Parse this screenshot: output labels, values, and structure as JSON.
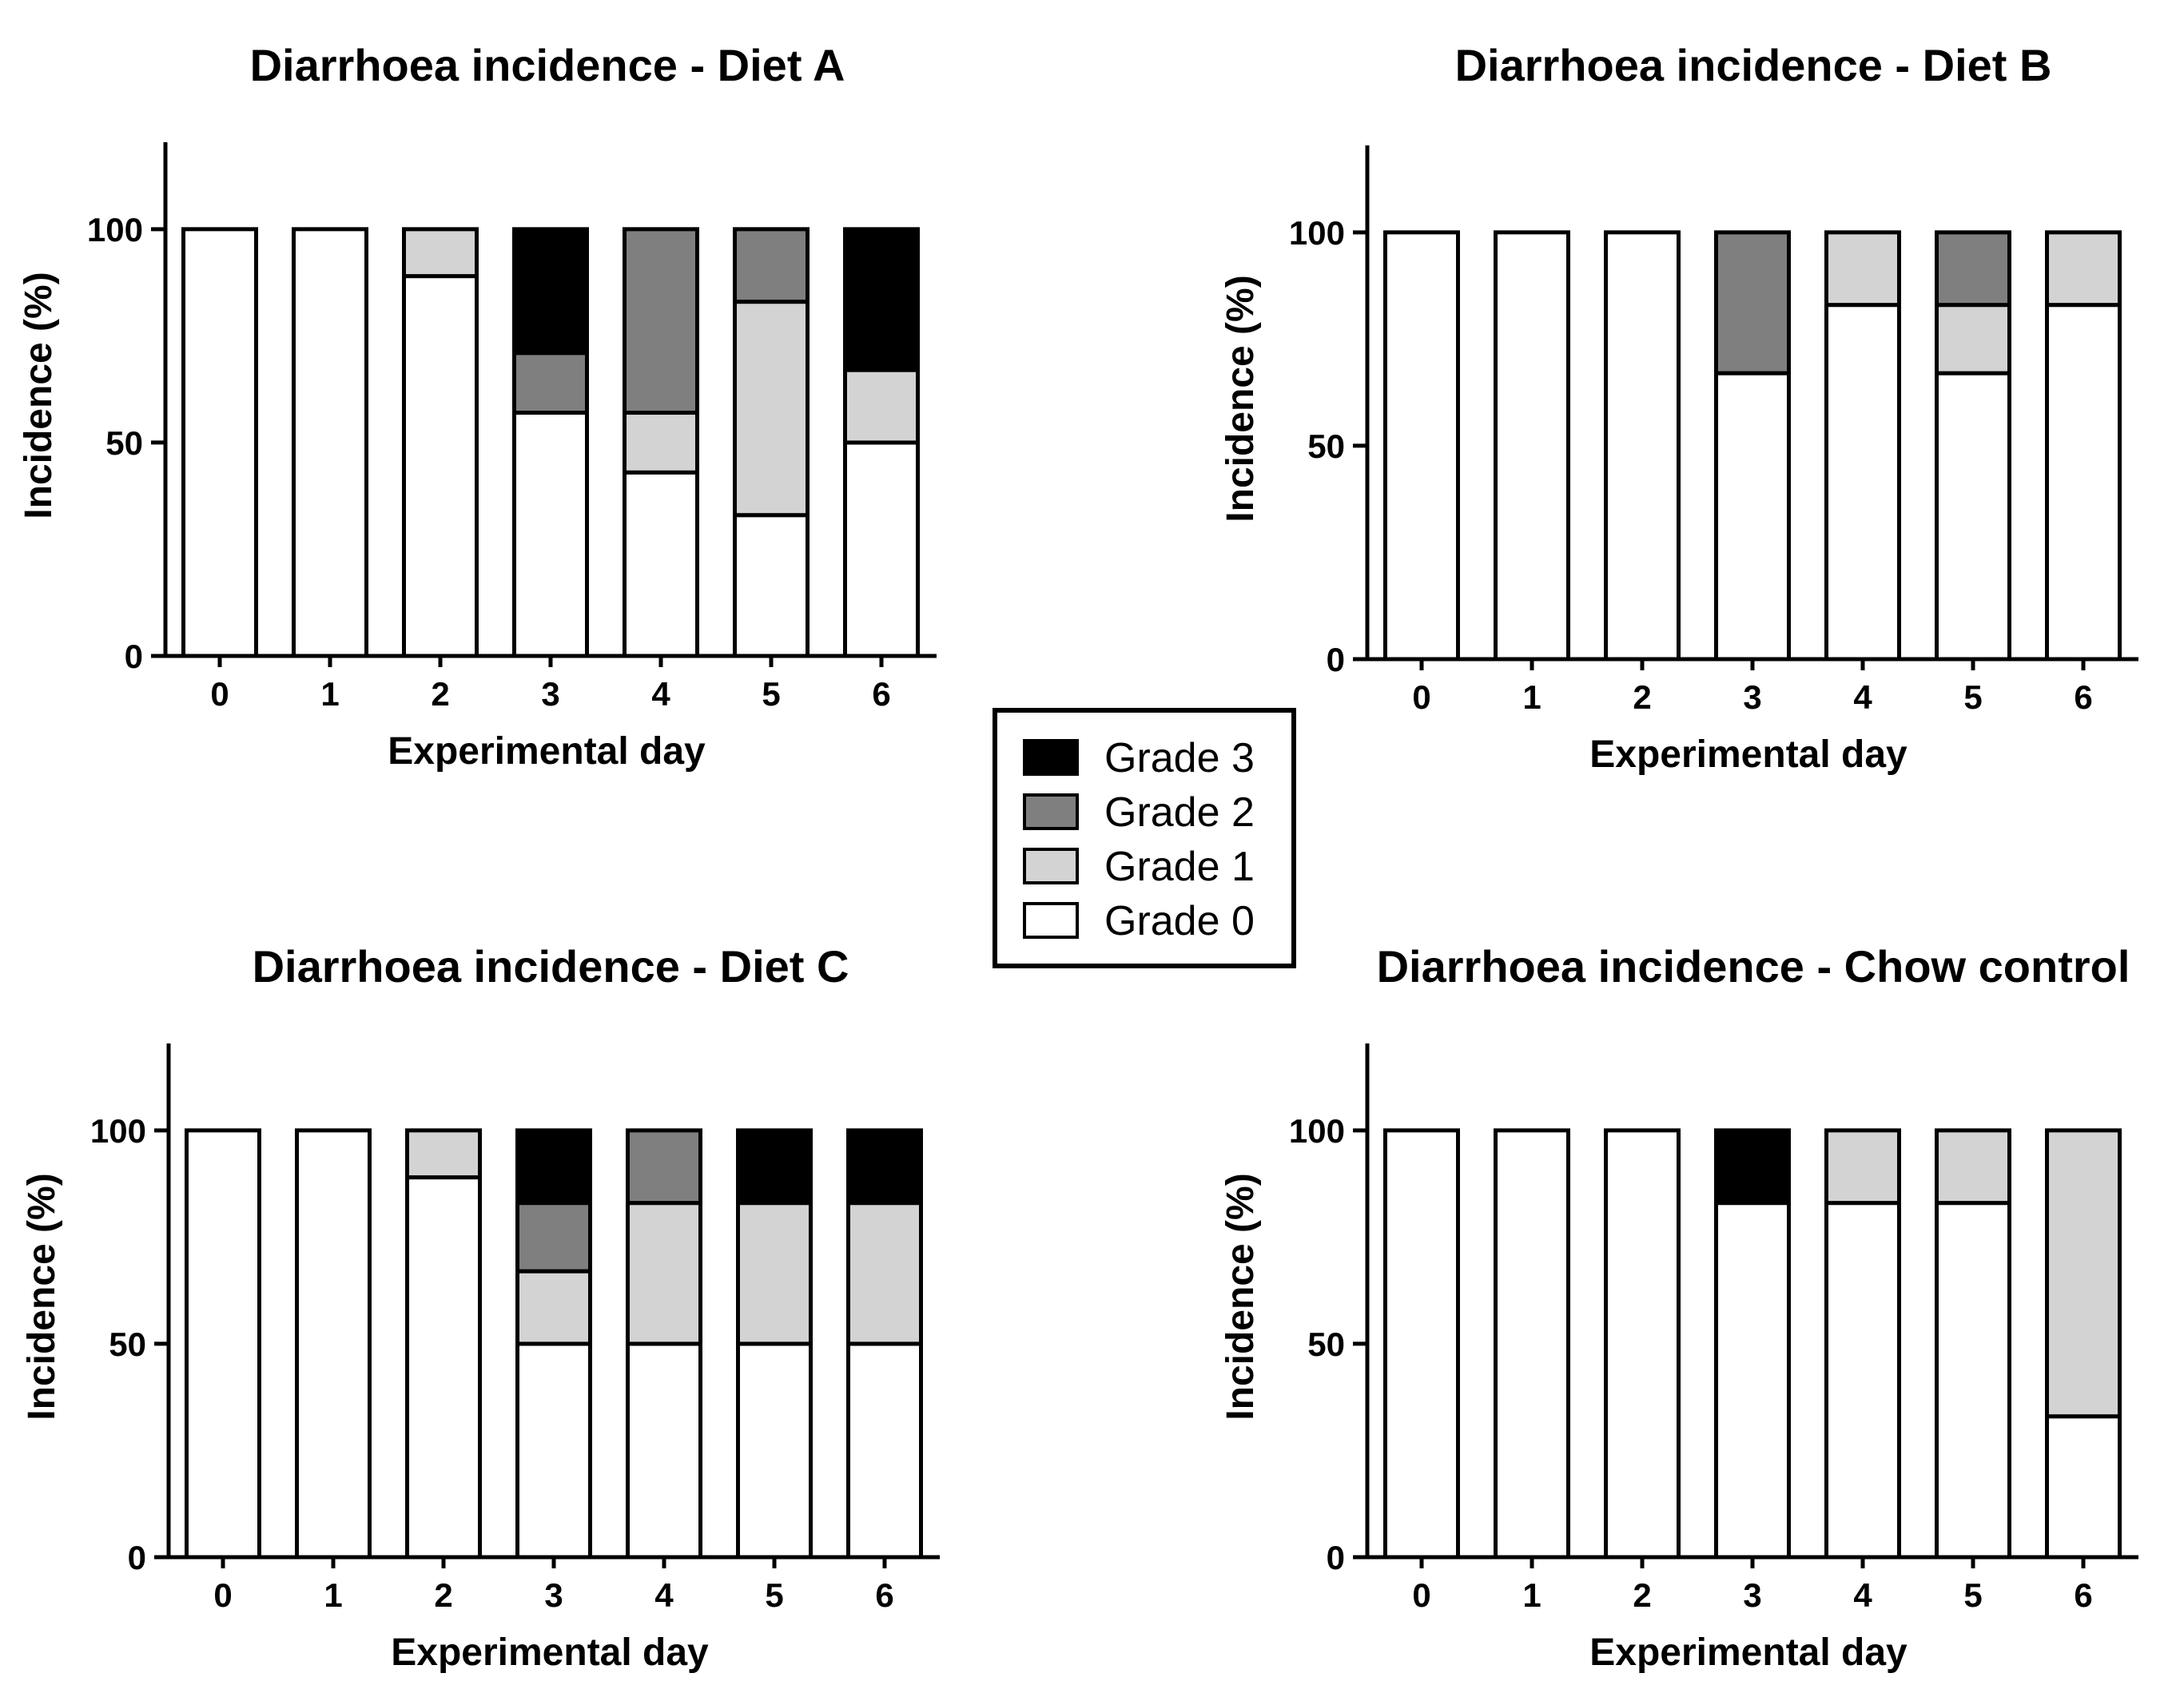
{
  "colors": {
    "grade0": "#ffffff",
    "grade1": "#d3d3d3",
    "grade2": "#7f7f7f",
    "grade3": "#000000",
    "outline": "#000000"
  },
  "legend": {
    "entries": [
      {
        "label": "Grade 3",
        "color_key": "grade3"
      },
      {
        "label": "Grade 2",
        "color_key": "grade2"
      },
      {
        "label": "Grade 1",
        "color_key": "grade1"
      },
      {
        "label": "Grade 0",
        "color_key": "grade0"
      }
    ],
    "position": "center"
  },
  "chart_data": [
    {
      "type": "bar",
      "stacked": true,
      "title": "Diarrhoea incidence - Diet A",
      "xlabel": "Experimental day",
      "ylabel": "Incidence (%)",
      "categories": [
        "0",
        "1",
        "2",
        "3",
        "4",
        "5",
        "6"
      ],
      "yticks": [
        "0",
        "50",
        "100"
      ],
      "ylim": [
        0,
        120
      ],
      "series": [
        {
          "name": "Grade 0",
          "color_key": "grade0",
          "values": [
            100,
            100,
            89,
            57,
            43,
            33,
            50
          ]
        },
        {
          "name": "Grade 1",
          "color_key": "grade1",
          "values": [
            0,
            0,
            11,
            0,
            14,
            50,
            17
          ]
        },
        {
          "name": "Grade 2",
          "color_key": "grade2",
          "values": [
            0,
            0,
            0,
            14,
            43,
            17,
            0
          ]
        },
        {
          "name": "Grade 3",
          "color_key": "grade3",
          "values": [
            0,
            0,
            0,
            29,
            0,
            0,
            33
          ]
        }
      ]
    },
    {
      "type": "bar",
      "stacked": true,
      "title": "Diarrhoea incidence - Diet B",
      "xlabel": "Experimental day",
      "ylabel": "Incidence (%)",
      "categories": [
        "0",
        "1",
        "2",
        "3",
        "4",
        "5",
        "6"
      ],
      "yticks": [
        "0",
        "50",
        "100"
      ],
      "ylim": [
        0,
        120
      ],
      "series": [
        {
          "name": "Grade 0",
          "color_key": "grade0",
          "values": [
            100,
            100,
            100,
            67,
            83,
            67,
            83
          ]
        },
        {
          "name": "Grade 1",
          "color_key": "grade1",
          "values": [
            0,
            0,
            0,
            0,
            17,
            16,
            17
          ]
        },
        {
          "name": "Grade 2",
          "color_key": "grade2",
          "values": [
            0,
            0,
            0,
            33,
            0,
            17,
            0
          ]
        },
        {
          "name": "Grade 3",
          "color_key": "grade3",
          "values": [
            0,
            0,
            0,
            0,
            0,
            0,
            0
          ]
        }
      ]
    },
    {
      "type": "bar",
      "stacked": true,
      "title": "Diarrhoea incidence - Diet C",
      "xlabel": "Experimental day",
      "ylabel": "Incidence (%)",
      "categories": [
        "0",
        "1",
        "2",
        "3",
        "4",
        "5",
        "6"
      ],
      "yticks": [
        "0",
        "50",
        "100"
      ],
      "ylim": [
        0,
        120
      ],
      "series": [
        {
          "name": "Grade 0",
          "color_key": "grade0",
          "values": [
            100,
            100,
            89,
            50,
            50,
            50,
            50
          ]
        },
        {
          "name": "Grade 1",
          "color_key": "grade1",
          "values": [
            0,
            0,
            11,
            17,
            33,
            33,
            33
          ]
        },
        {
          "name": "Grade 2",
          "color_key": "grade2",
          "values": [
            0,
            0,
            0,
            16,
            17,
            0,
            0
          ]
        },
        {
          "name": "Grade 3",
          "color_key": "grade3",
          "values": [
            0,
            0,
            0,
            17,
            0,
            17,
            17
          ]
        }
      ]
    },
    {
      "type": "bar",
      "stacked": true,
      "title": "Diarrhoea incidence - Chow control",
      "xlabel": "Experimental day",
      "ylabel": "Incidence (%)",
      "categories": [
        "0",
        "1",
        "2",
        "3",
        "4",
        "5",
        "6"
      ],
      "yticks": [
        "0",
        "50",
        "100"
      ],
      "ylim": [
        0,
        120
      ],
      "series": [
        {
          "name": "Grade 0",
          "color_key": "grade0",
          "values": [
            100,
            100,
            100,
            83,
            83,
            83,
            33
          ]
        },
        {
          "name": "Grade 1",
          "color_key": "grade1",
          "values": [
            0,
            0,
            0,
            0,
            17,
            17,
            67
          ]
        },
        {
          "name": "Grade 2",
          "color_key": "grade2",
          "values": [
            0,
            0,
            0,
            0,
            0,
            0,
            0
          ]
        },
        {
          "name": "Grade 3",
          "color_key": "grade3",
          "values": [
            0,
            0,
            0,
            17,
            0,
            0,
            0
          ]
        }
      ]
    }
  ]
}
